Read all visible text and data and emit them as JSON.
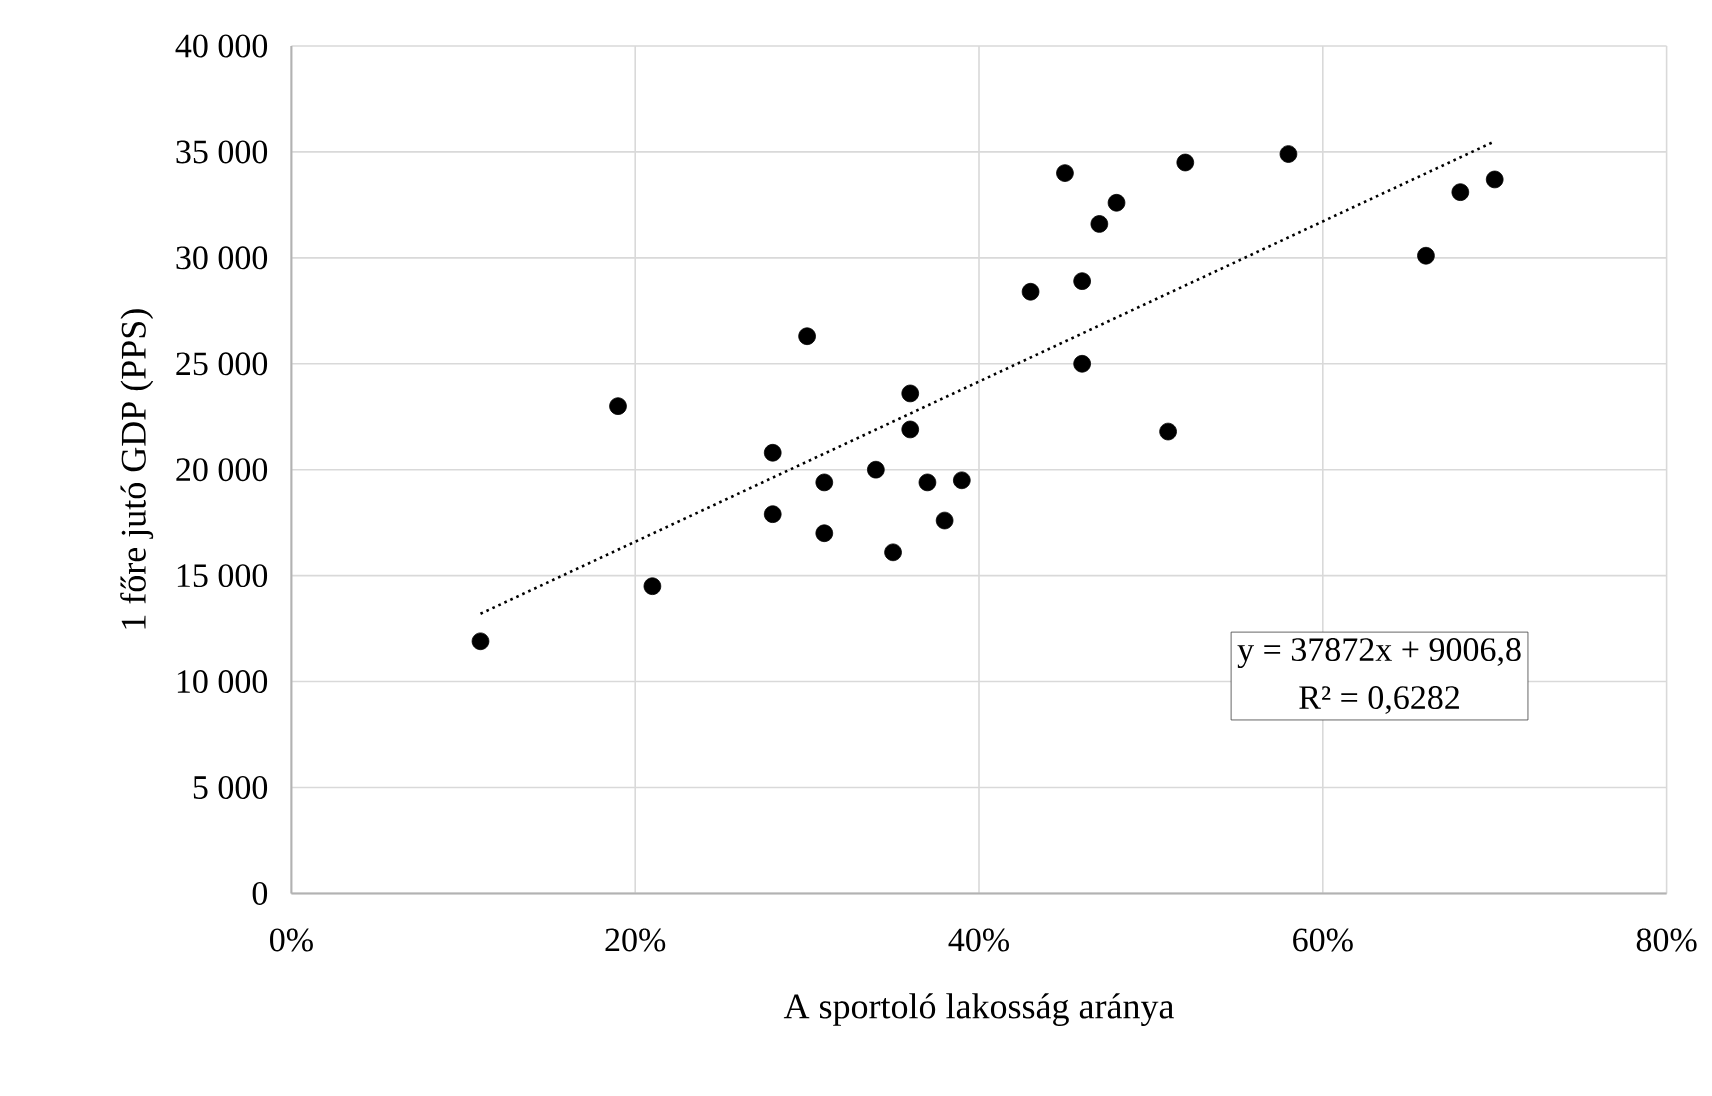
{
  "chart_data": {
    "type": "scatter",
    "xlabel": "A sportoló lakosság aránya",
    "ylabel": "1 főre jutó GDP (PPS)",
    "xlim": [
      0,
      0.8
    ],
    "xticks": [
      {
        "value": 0,
        "label": "0%"
      },
      {
        "value": 0.2,
        "label": "20%"
      },
      {
        "value": 0.4,
        "label": "40%"
      },
      {
        "value": 0.6,
        "label": "60%"
      },
      {
        "value": 0.8,
        "label": "80%"
      }
    ],
    "ylim": [
      0,
      40000
    ],
    "yticks": [
      0,
      {
        "value": 5000,
        "label": "5 000"
      },
      {
        "value": 10000,
        "label": "10 000"
      },
      {
        "value": 15000,
        "label": "15 000"
      },
      {
        "value": 20000,
        "label": "20 000"
      },
      {
        "value": 25000,
        "label": "25 000"
      },
      {
        "value": 30000,
        "label": "30 000"
      },
      {
        "value": 35000,
        "label": "35 000"
      },
      {
        "value": 40000,
        "label": "40 000"
      }
    ],
    "grid": true,
    "series": [
      {
        "marker": "circle",
        "color": "#000000",
        "x": [
          0.11,
          0.19,
          0.21,
          0.28,
          0.28,
          0.3,
          0.31,
          0.31,
          0.34,
          0.35,
          0.36,
          0.36,
          0.37,
          0.38,
          0.39,
          0.43,
          0.45,
          0.46,
          0.46,
          0.47,
          0.48,
          0.51,
          0.52,
          0.58,
          0.66,
          0.68,
          0.7
        ],
        "values": [
          11900,
          23000,
          14500,
          20800,
          17900,
          26300,
          19400,
          17000,
          20000,
          16100,
          23600,
          21900,
          19400,
          17600,
          19500,
          28400,
          34000,
          28900,
          25000,
          31600,
          32600,
          21800,
          34500,
          34900,
          30100,
          33100,
          33700
        ]
      },
      {
        "type": "line",
        "line_style": "dotted",
        "marker": "none",
        "color": "#000000",
        "x": [
          0.11,
          0.7
        ],
        "values": [
          13200,
          35500
        ]
      }
    ],
    "annotations": [
      "y = 37872x + 9006,8",
      "R² = 0,6282"
    ]
  }
}
